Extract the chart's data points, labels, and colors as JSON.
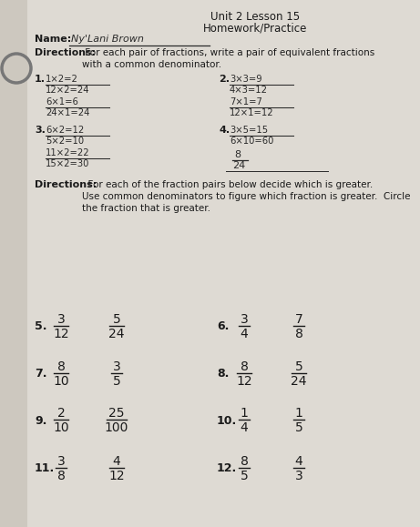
{
  "title": "Unit 2 Lesson 15",
  "subtitle": "Homework/Practice",
  "bg_color": "#cdc8bf",
  "paper_color": "#dedad3",
  "text_color": "#1a1a1a",
  "handwriting_color": "#2a2a2a",
  "directions1_bold": "Directions:",
  "directions1_rest": " For each pair of fractions, write a pair of equivalent fractions\nwith a common denominator.",
  "directions2_bold": "Directions:",
  "directions2_rest": "  For each of the fraction pairs below decide which is greater.\nUse common denominators to figure which fraction is greater.  Circle\nthe fraction that is greater.",
  "name_text": "Ny'Lani Brown",
  "p1_lines": [
    [
      "1×2=2",
      "12×2=24"
    ],
    [
      "6×1=6",
      "24×1=24"
    ]
  ],
  "p2_lines": [
    [
      "3×3=9",
      "4×3=12"
    ],
    [
      "7×1=7",
      "12×1=12"
    ]
  ],
  "p3_lines": [
    [
      "6×2=12",
      "5×2=10"
    ],
    [
      "11×2=22",
      "15×2=30"
    ]
  ],
  "p4_lines": [
    [
      "3×5=15",
      "6×10=60"
    ],
    [
      "8",
      "24"
    ]
  ],
  "bottom_problems": [
    {
      "num": "5.",
      "f1n": "3",
      "f1d": "12",
      "f2n": "5",
      "f2d": "24"
    },
    {
      "num": "6.",
      "f1n": "3",
      "f1d": "4",
      "f2n": "7",
      "f2d": "8"
    },
    {
      "num": "7.",
      "f1n": "8",
      "f1d": "10",
      "f2n": "3",
      "f2d": "5"
    },
    {
      "num": "8.",
      "f1n": "8",
      "f1d": "12",
      "f2n": "5",
      "f2d": "24"
    },
    {
      "num": "9.",
      "f1n": "2",
      "f1d": "10",
      "f2n": "25",
      "f2d": "100"
    },
    {
      "num": "10.",
      "f1n": "1",
      "f1d": "4",
      "f2n": "1",
      "f2d": "5"
    },
    {
      "num": "11.",
      "f1n": "3",
      "f1d": "8",
      "f2n": "4",
      "f2d": "12"
    },
    {
      "num": "12.",
      "f1n": "8",
      "f1d": "5",
      "f2n": "4",
      "f2d": "3"
    }
  ]
}
